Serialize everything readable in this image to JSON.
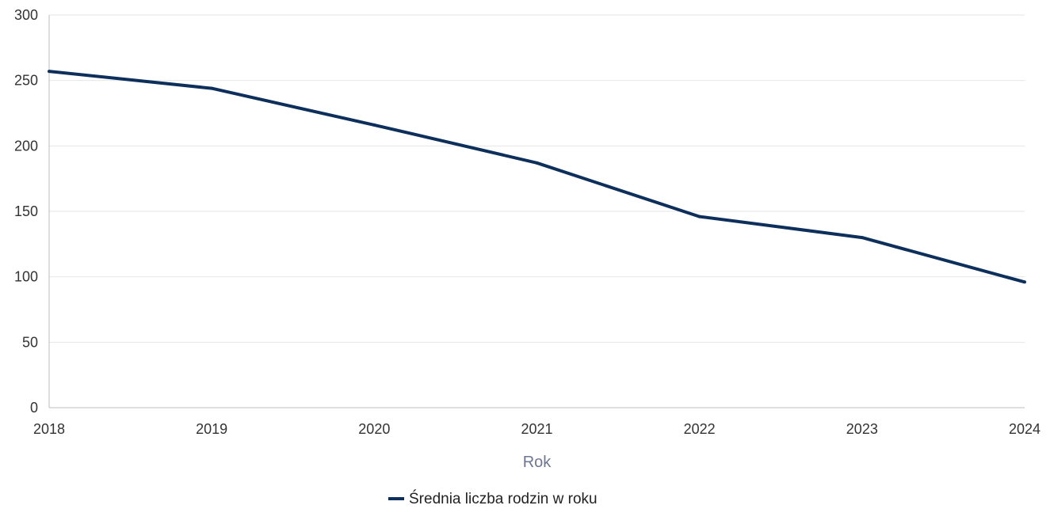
{
  "chart_data": {
    "type": "line",
    "title": "",
    "xlabel": "Rok",
    "ylabel": "",
    "x": [
      "2018",
      "2019",
      "2020",
      "2021",
      "2022",
      "2023",
      "2024"
    ],
    "series": [
      {
        "name": "Średnia liczba rodzin w roku",
        "values": [
          257,
          244,
          216,
          187,
          146,
          130,
          96
        ],
        "color": "#0d2f5c"
      }
    ],
    "ylim": [
      0,
      300
    ],
    "yticks": [
      0,
      50,
      100,
      150,
      200,
      250,
      300
    ],
    "grid": true,
    "legend": "bottom-center"
  }
}
